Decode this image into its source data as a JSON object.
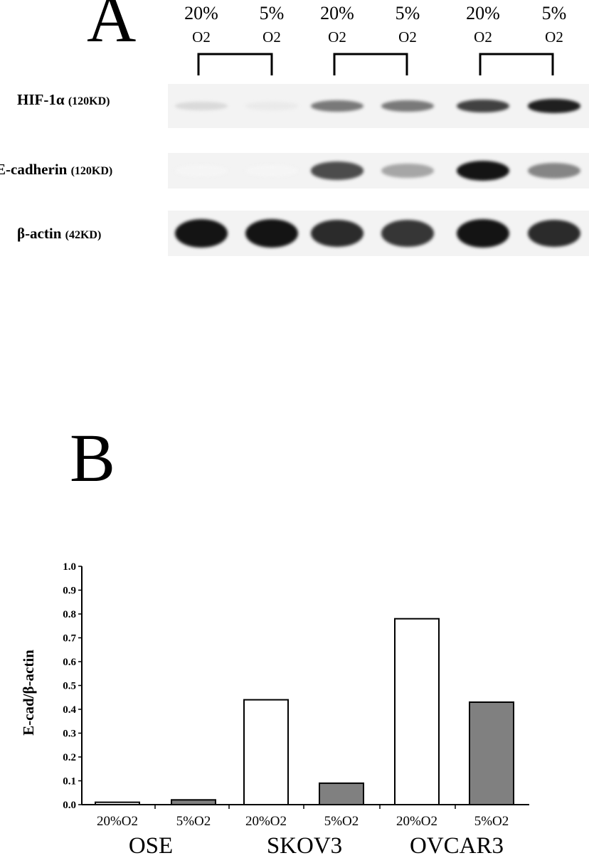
{
  "panel_a": {
    "letter": "A",
    "conditions": [
      {
        "pct": "20%",
        "o2": "O2"
      },
      {
        "pct": "5%",
        "o2": "O2"
      },
      {
        "pct": "20%",
        "o2": "O2"
      },
      {
        "pct": "5%",
        "o2": "O2"
      },
      {
        "pct": "20%",
        "o2": "O2"
      },
      {
        "pct": "5%",
        "o2": "O2"
      }
    ],
    "blots": [
      {
        "name": "HIF-1α",
        "kd": "(120KD)",
        "intensity": [
          0.12,
          0.05,
          0.55,
          0.55,
          0.8,
          0.95
        ]
      },
      {
        "name": "E-cadherin",
        "kd": "(120KD)",
        "intensity": [
          0.0,
          0.0,
          0.75,
          0.35,
          1.0,
          0.5
        ]
      },
      {
        "name": "β-actin",
        "kd": "(42KD)",
        "intensity": [
          1.0,
          1.0,
          0.9,
          0.85,
          1.0,
          0.9
        ]
      }
    ]
  },
  "panel_b": {
    "letter": "B",
    "chart_data": {
      "type": "bar",
      "ylabel": "E-cad/β-actin",
      "ylim": [
        0.0,
        1.0
      ],
      "yticks": [
        "0.0",
        "0.1",
        "0.2",
        "0.3",
        "0.4",
        "0.5",
        "0.6",
        "0.7",
        "0.8",
        "0.9",
        "1.0"
      ],
      "categories": [
        "20%O2",
        "5%O2",
        "20%O2",
        "5%O2",
        "20%O2",
        "5%O2"
      ],
      "groups": [
        "OSE",
        "SKOV3",
        "OVCAR3"
      ],
      "values": [
        0.01,
        0.02,
        0.44,
        0.09,
        0.78,
        0.43
      ],
      "bar_colors": [
        "#ffffff",
        "#808080",
        "#ffffff",
        "#808080",
        "#ffffff",
        "#808080"
      ],
      "grid": false,
      "legend": "none"
    }
  }
}
